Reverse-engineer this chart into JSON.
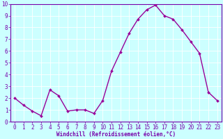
{
  "x": [
    0,
    1,
    2,
    3,
    4,
    5,
    6,
    7,
    8,
    9,
    10,
    11,
    12,
    13,
    14,
    15,
    16,
    17,
    18,
    19,
    20,
    21,
    22,
    23
  ],
  "y": [
    2.0,
    1.4,
    0.9,
    0.5,
    2.7,
    2.2,
    0.9,
    1.0,
    1.0,
    0.7,
    1.8,
    4.3,
    5.9,
    7.5,
    8.7,
    9.5,
    9.9,
    9.0,
    8.7,
    7.8,
    6.8,
    5.8,
    2.5,
    1.8
  ],
  "line_color": "#990099",
  "marker": "D",
  "marker_size": 2,
  "bg_color": "#ccffff",
  "grid_color": "#ffffff",
  "xlabel": "Windchill (Refroidissement éolien,°C)",
  "xlabel_color": "#7700aa",
  "tick_color": "#7700aa",
  "spine_color": "#7700aa",
  "xlim": [
    -0.5,
    23.5
  ],
  "ylim": [
    0,
    10
  ],
  "yticks": [
    0,
    1,
    2,
    3,
    4,
    5,
    6,
    7,
    8,
    9,
    10
  ],
  "xticks": [
    0,
    1,
    2,
    3,
    4,
    5,
    6,
    7,
    8,
    9,
    10,
    11,
    12,
    13,
    14,
    15,
    16,
    17,
    18,
    19,
    20,
    21,
    22,
    23
  ],
  "xlabel_fontsize": 5.5,
  "tick_fontsize": 5.5,
  "linewidth": 1.0,
  "grid_linewidth": 0.6
}
